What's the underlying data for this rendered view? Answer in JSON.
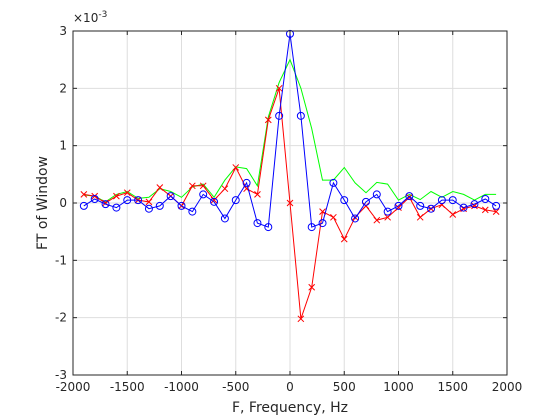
{
  "chart_data": {
    "type": "line",
    "title": "",
    "xlabel": "F, Frequency, Hz",
    "ylabel": "FT of Window",
    "y_exponent_label": "×10",
    "y_exponent_power": "-3",
    "xlim": [
      -2000,
      2000
    ],
    "ylim": [
      -3,
      3
    ],
    "x_ticks": [
      -2000,
      -1500,
      -1000,
      -500,
      0,
      500,
      1000,
      1500,
      2000
    ],
    "y_ticks": [
      -3,
      -2,
      -1,
      0,
      1,
      2,
      3
    ],
    "x_tick_labels": [
      "-2000",
      "-1500",
      "-1000",
      "-500",
      "0",
      "500",
      "1000",
      "1500",
      "2000"
    ],
    "y_tick_labels": [
      "-3",
      "-2",
      "-1",
      "0",
      "1",
      "2",
      "3"
    ],
    "grid": true,
    "series": [
      {
        "color": "#00ff00",
        "marker": "none",
        "x": [
          -1900,
          -1800,
          -1700,
          -1600,
          -1500,
          -1400,
          -1300,
          -1200,
          -1100,
          -1000,
          -900,
          -800,
          -700,
          -600,
          -500,
          -400,
          -300,
          -200,
          -100,
          0,
          100,
          200,
          300,
          400,
          500,
          600,
          700,
          800,
          900,
          1000,
          1100,
          1200,
          1300,
          1400,
          1500,
          1600,
          1700,
          1800,
          1900
        ],
        "y": [
          0.14,
          0.12,
          0.02,
          0.15,
          0.2,
          0.08,
          0.1,
          0.25,
          0.2,
          0.1,
          0.28,
          0.33,
          0.1,
          0.4,
          0.63,
          0.6,
          0.3,
          1.5,
          2.1,
          2.5,
          2.0,
          1.3,
          0.4,
          0.4,
          0.62,
          0.35,
          0.18,
          0.36,
          0.33,
          0.05,
          0.15,
          0.06,
          0.2,
          0.1,
          0.2,
          0.15,
          0.05,
          0.15,
          0.15
        ]
      },
      {
        "color": "#ff0000",
        "marker": "x",
        "x": [
          -1900,
          -1800,
          -1700,
          -1600,
          -1500,
          -1400,
          -1300,
          -1200,
          -1100,
          -1000,
          -900,
          -800,
          -700,
          -600,
          -500,
          -400,
          -300,
          -200,
          -100,
          0,
          100,
          200,
          300,
          400,
          500,
          600,
          700,
          800,
          900,
          1000,
          1100,
          1200,
          1300,
          1400,
          1500,
          1600,
          1700,
          1800,
          1900
        ],
        "y": [
          0.15,
          0.12,
          0.0,
          0.12,
          0.18,
          0.05,
          0.02,
          0.27,
          0.12,
          -0.05,
          0.3,
          0.3,
          0.05,
          0.25,
          0.62,
          0.25,
          0.15,
          1.45,
          2.0,
          0.0,
          -2.02,
          -1.47,
          -0.15,
          -0.25,
          -0.63,
          -0.25,
          -0.05,
          -0.3,
          -0.25,
          -0.08,
          0.1,
          -0.25,
          -0.1,
          -0.03,
          -0.2,
          -0.1,
          -0.05,
          -0.12,
          -0.15
        ]
      },
      {
        "color": "#0000ff",
        "marker": "o",
        "x": [
          -1900,
          -1800,
          -1700,
          -1600,
          -1500,
          -1400,
          -1300,
          -1200,
          -1100,
          -1000,
          -900,
          -800,
          -700,
          -600,
          -500,
          -400,
          -300,
          -200,
          -100,
          0,
          100,
          200,
          300,
          400,
          500,
          600,
          700,
          800,
          900,
          1000,
          1100,
          1200,
          1300,
          1400,
          1500,
          1600,
          1700,
          1800,
          1900
        ],
        "y": [
          -0.05,
          0.07,
          -0.02,
          -0.08,
          0.05,
          0.05,
          -0.1,
          -0.05,
          0.12,
          -0.05,
          -0.15,
          0.15,
          0.02,
          -0.27,
          0.05,
          0.35,
          -0.35,
          -0.42,
          1.52,
          2.95,
          1.52,
          -0.42,
          -0.35,
          0.35,
          0.05,
          -0.27,
          0.02,
          0.15,
          -0.15,
          -0.05,
          0.12,
          -0.05,
          -0.1,
          0.05,
          0.05,
          -0.08,
          -0.02,
          0.07,
          -0.05
        ]
      }
    ]
  }
}
